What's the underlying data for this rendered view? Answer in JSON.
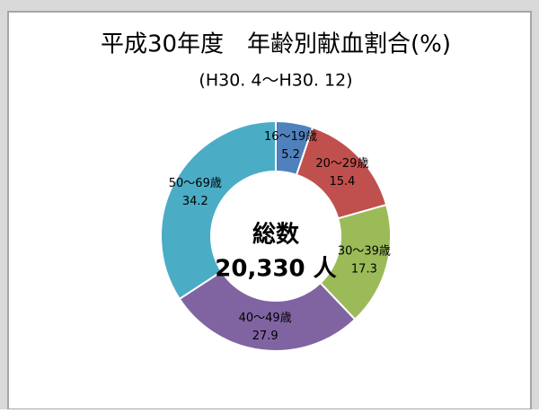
{
  "chart_data": {
    "type": "donut",
    "title": "平成30年度　年齢別献血割合(%)",
    "subtitle": "(H30. 4～H30. 12)",
    "center_title": "総数",
    "center_total": "20,330 人",
    "categories": [
      "16～19歳",
      "20～29歳",
      "30～39歳",
      "40～49歳",
      "50～69歳"
    ],
    "values": [
      5.2,
      15.4,
      17.3,
      27.9,
      34.2
    ],
    "colors": [
      "#4f81bd",
      "#c0504d",
      "#9bbb59",
      "#8064a2",
      "#4bacc6"
    ]
  }
}
